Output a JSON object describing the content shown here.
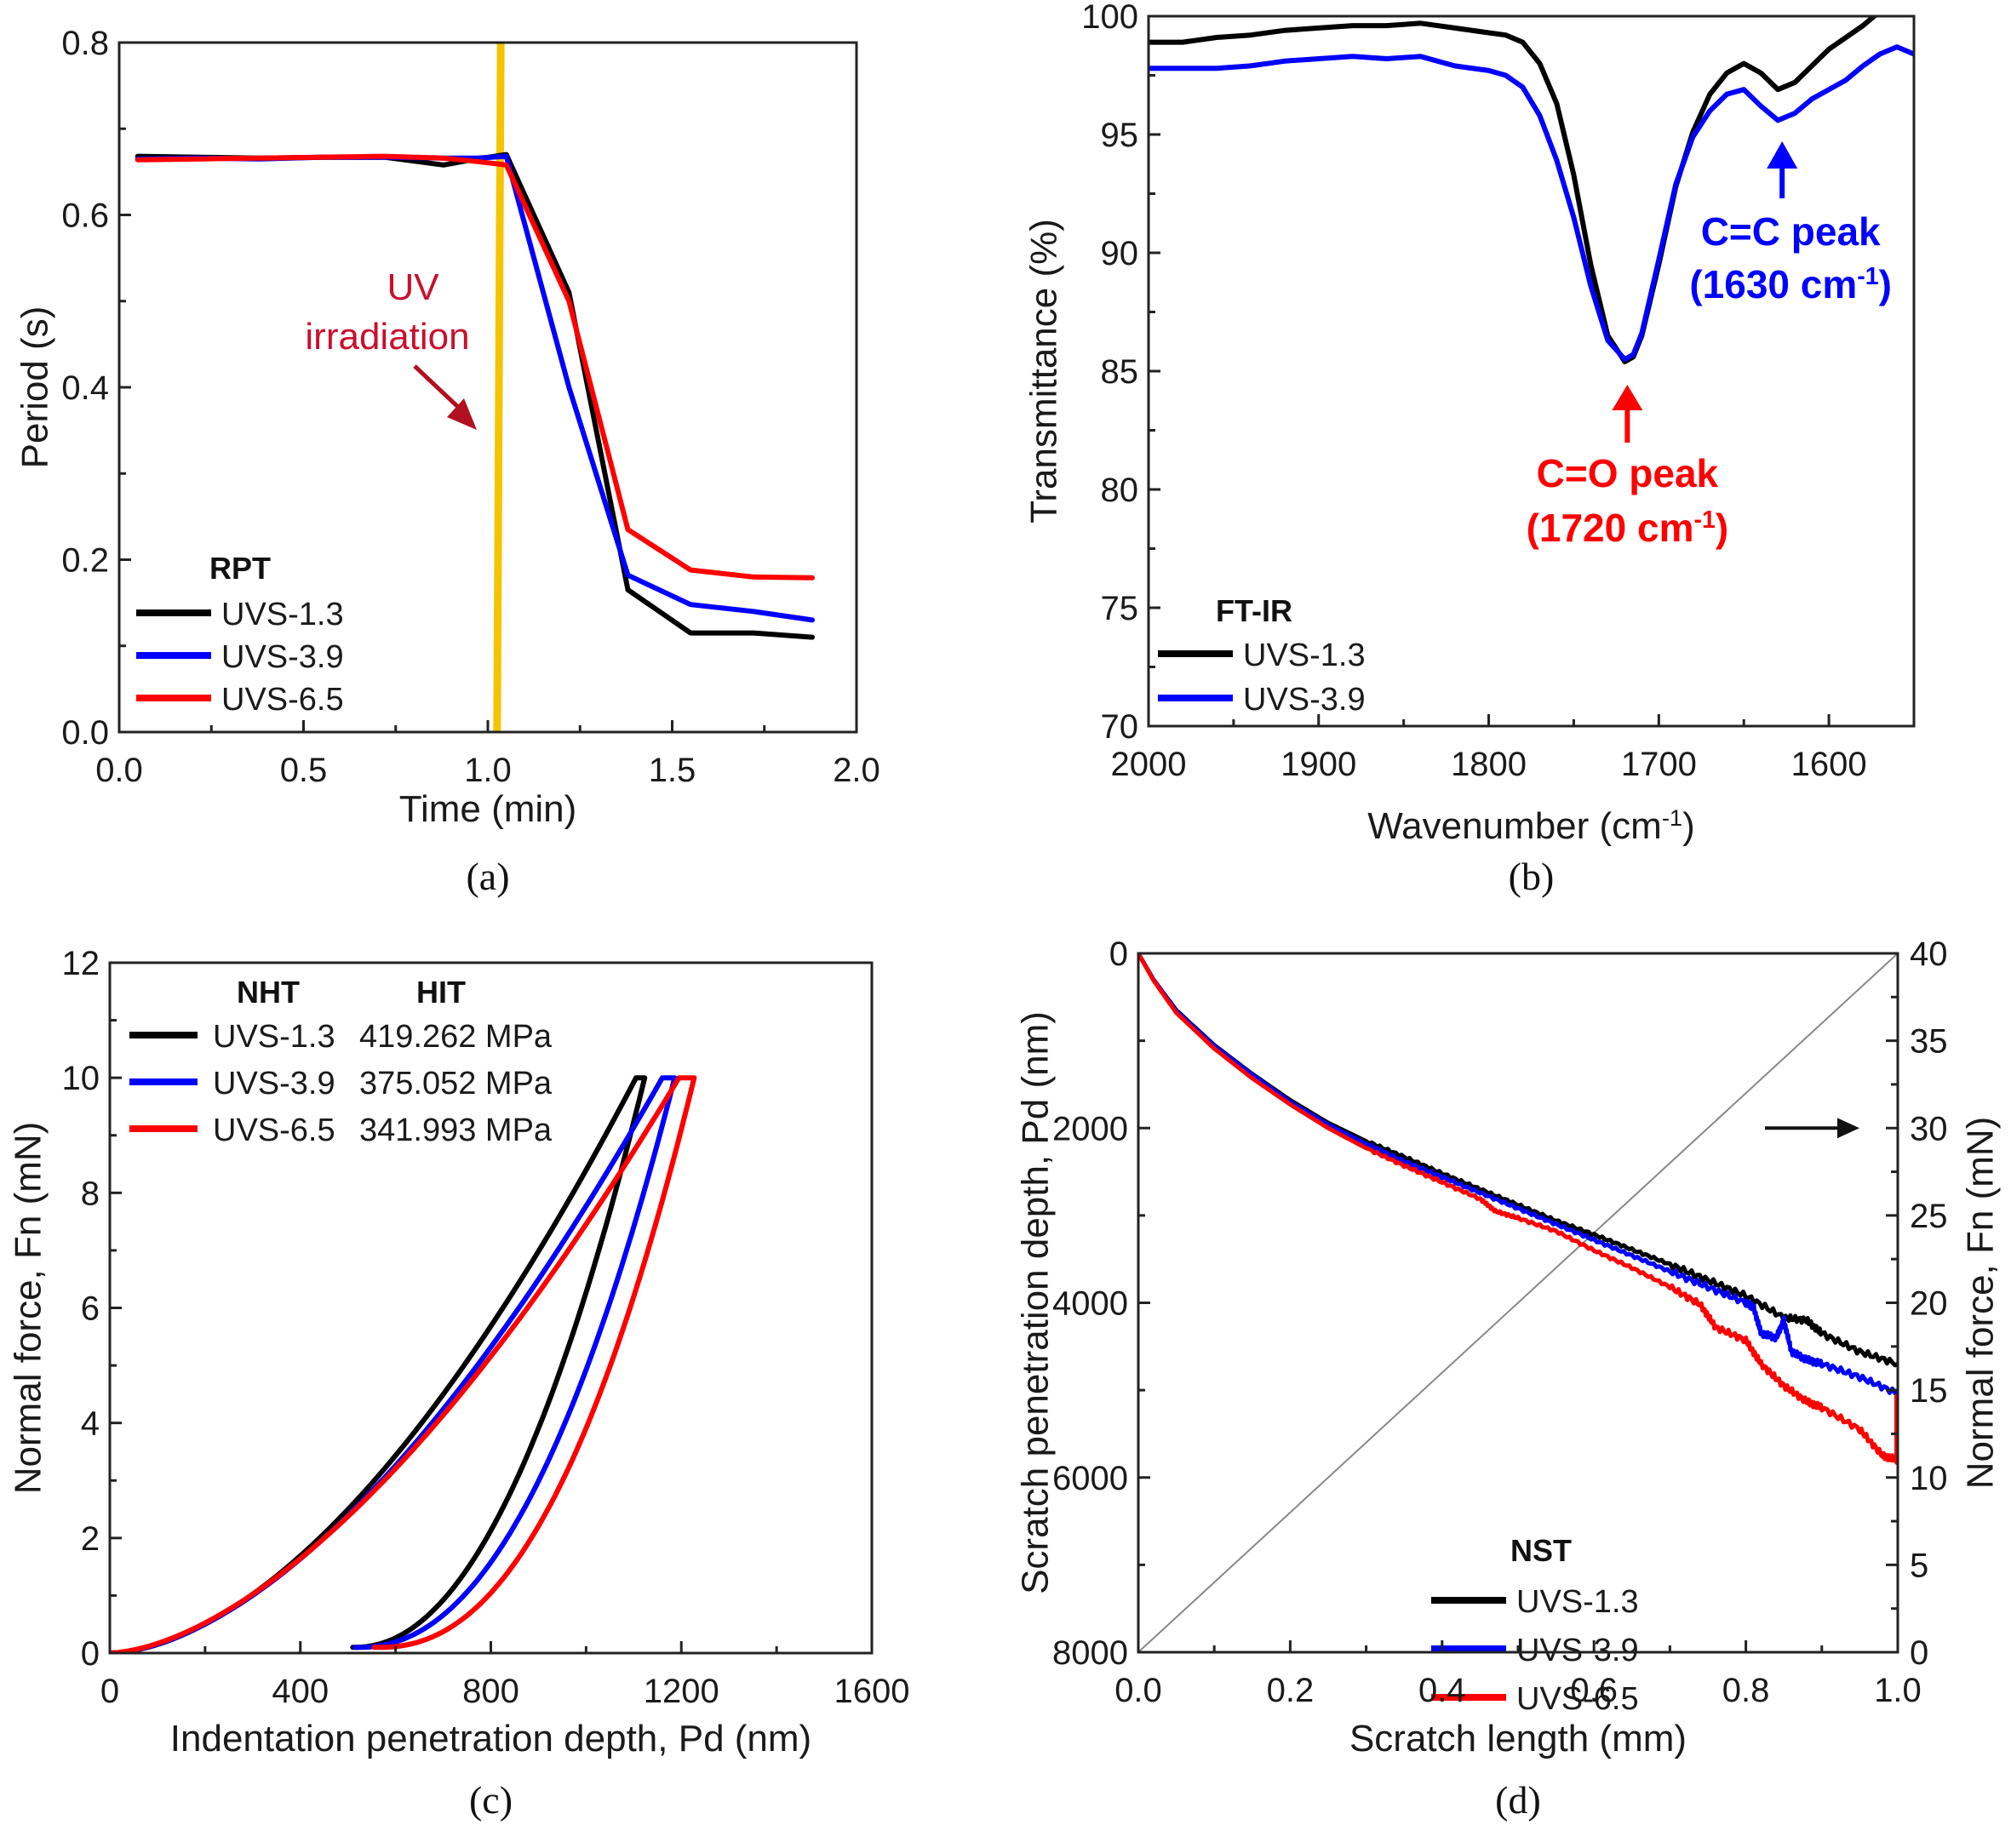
{
  "colors": {
    "UVS-1.3": "#000000",
    "UVS-3.9": "#0000ff",
    "UVS-6.5": "#ff0000",
    "uv_line": "#f5c400",
    "uv_text": "#c8102e",
    "co_annotation": "#ff0000",
    "cc_annotation": "#0000ff"
  },
  "chart_data": [
    {
      "id": "a",
      "type": "line",
      "caption": "(a)",
      "title": "",
      "xlabel": "Time (min)",
      "ylabel": "Period (s)",
      "xlim": [
        0,
        2.0
      ],
      "ylim": [
        0,
        0.8
      ],
      "xticks": [
        0.0,
        0.5,
        1.0,
        1.5,
        2.0
      ],
      "xtick_labels": [
        "0.0",
        "0.5",
        "1.0",
        "1.5",
        "2.0"
      ],
      "yticks": [
        0.0,
        0.2,
        0.4,
        0.6,
        0.8
      ],
      "ytick_labels": [
        "0.0",
        "0.2",
        "0.4",
        "0.6",
        "0.8"
      ],
      "grid": false,
      "legend": {
        "title": "RPT",
        "placement": "bottom-left",
        "entries": [
          "UVS-1.3",
          "UVS-3.9",
          "UVS-6.5"
        ]
      },
      "annotations": [
        {
          "text_lines": [
            "UV",
            "irradiation"
          ],
          "kind": "arrow-label",
          "x": 0.95,
          "y": 0.35
        },
        {
          "kind": "vertical-line",
          "label": "UV irradiation start",
          "x": 1.03
        }
      ],
      "series": [
        {
          "name": "UVS-1.3",
          "x": [
            0.05,
            0.22,
            0.38,
            0.55,
            0.72,
            0.88,
            0.97,
            1.05,
            1.22,
            1.38,
            1.55,
            1.72,
            1.88
          ],
          "y": [
            0.668,
            0.667,
            0.666,
            0.667,
            0.667,
            0.658,
            0.665,
            0.67,
            0.51,
            0.165,
            0.115,
            0.115,
            0.11
          ]
        },
        {
          "name": "UVS-3.9",
          "x": [
            0.05,
            0.22,
            0.38,
            0.55,
            0.72,
            0.88,
            0.97,
            1.05,
            1.22,
            1.38,
            1.55,
            1.72,
            1.88
          ],
          "y": [
            0.665,
            0.666,
            0.665,
            0.667,
            0.667,
            0.666,
            0.666,
            0.668,
            0.4,
            0.182,
            0.148,
            0.14,
            0.13
          ]
        },
        {
          "name": "UVS-6.5",
          "x": [
            0.05,
            0.22,
            0.38,
            0.55,
            0.72,
            0.88,
            0.97,
            1.05,
            1.22,
            1.38,
            1.55,
            1.72,
            1.88
          ],
          "y": [
            0.664,
            0.665,
            0.666,
            0.667,
            0.668,
            0.666,
            0.662,
            0.658,
            0.5,
            0.235,
            0.188,
            0.18,
            0.179
          ]
        }
      ]
    },
    {
      "id": "b",
      "type": "line",
      "caption": "(b)",
      "title": "",
      "xlabel": "Wavenumber (cm",
      "xlabel_sup": "-1",
      "xlabel_end": ")",
      "ylabel": "Transmittance (%)",
      "xlim": [
        2000,
        1550
      ],
      "ylim": [
        70,
        100
      ],
      "xticks": [
        2000,
        1900,
        1800,
        1700,
        1600
      ],
      "xtick_labels": [
        "2000",
        "1900",
        "1800",
        "1700",
        "1600"
      ],
      "yticks": [
        70,
        75,
        80,
        85,
        90,
        95,
        100
      ],
      "ytick_labels": [
        "70",
        "75",
        "80",
        "85",
        "90",
        "95",
        "100"
      ],
      "grid": false,
      "legend": {
        "title": "FT-IR",
        "placement": "bottom-left",
        "entries": [
          "UVS-1.3",
          "UVS-3.9"
        ]
      },
      "annotations": [
        {
          "text_lines": [
            "C=O peak",
            "(1720 cm",
            ")"
          ],
          "sup": "-1",
          "x": 1720,
          "y": 83.5,
          "color_key": "co_annotation"
        },
        {
          "text_lines": [
            "C=C peak",
            "(1630 cm",
            ")"
          ],
          "sup": "-1",
          "x": 1630,
          "y": 94.5,
          "color_key": "cc_annotation"
        }
      ],
      "series": [
        {
          "name": "UVS-1.3",
          "x": [
            2000,
            1980,
            1960,
            1940,
            1920,
            1900,
            1880,
            1860,
            1840,
            1820,
            1800,
            1790,
            1780,
            1770,
            1760,
            1750,
            1740,
            1730,
            1720,
            1715,
            1710,
            1700,
            1690,
            1680,
            1670,
            1660,
            1650,
            1640,
            1630,
            1620,
            1610,
            1600,
            1590,
            1580,
            1570,
            1560
          ],
          "y": [
            98.9,
            98.9,
            99.1,
            99.2,
            99.4,
            99.5,
            99.6,
            99.6,
            99.7,
            99.5,
            99.3,
            99.2,
            98.9,
            98.0,
            96.3,
            93.3,
            89.5,
            86.5,
            85.4,
            85.6,
            86.5,
            89.5,
            92.8,
            95.1,
            96.7,
            97.6,
            98.0,
            97.6,
            96.9,
            97.2,
            97.9,
            98.6,
            99.1,
            99.6,
            100.2,
            100.8
          ]
        },
        {
          "name": "UVS-3.9",
          "x": [
            2000,
            1980,
            1960,
            1940,
            1920,
            1900,
            1880,
            1860,
            1840,
            1820,
            1800,
            1790,
            1780,
            1770,
            1760,
            1750,
            1740,
            1730,
            1720,
            1715,
            1710,
            1700,
            1690,
            1680,
            1670,
            1660,
            1650,
            1640,
            1630,
            1620,
            1610,
            1600,
            1590,
            1580,
            1570,
            1560,
            1550
          ],
          "y": [
            97.8,
            97.8,
            97.8,
            97.9,
            98.1,
            98.2,
            98.3,
            98.2,
            98.3,
            97.9,
            97.7,
            97.5,
            97.0,
            95.8,
            93.9,
            91.5,
            88.6,
            86.3,
            85.5,
            85.7,
            86.6,
            89.7,
            92.9,
            94.9,
            96.0,
            96.7,
            96.9,
            96.2,
            95.6,
            95.9,
            96.5,
            96.9,
            97.3,
            97.9,
            98.4,
            98.7,
            98.4
          ]
        }
      ]
    },
    {
      "id": "c",
      "type": "line",
      "caption": "(c)",
      "title": "",
      "xlabel": "Indentation penetration depth, Pd (nm)",
      "ylabel": "Normal force, Fn (mN)",
      "xlim": [
        0,
        1600
      ],
      "ylim": [
        0,
        12
      ],
      "xticks": [
        0,
        400,
        800,
        1200,
        1600
      ],
      "xtick_labels": [
        "0",
        "400",
        "800",
        "1200",
        "1600"
      ],
      "yticks": [
        0,
        2,
        4,
        6,
        8,
        10,
        12
      ],
      "ytick_labels": [
        "0",
        "2",
        "4",
        "6",
        "8",
        "10",
        "12"
      ],
      "grid": false,
      "legend": {
        "placement": "top-left",
        "column_titles": [
          "NHT",
          "HIT"
        ],
        "entries": [
          "UVS-1.3",
          "UVS-3.9",
          "UVS-6.5"
        ],
        "values": [
          "419.262 MPa",
          "375.052 MPa",
          "341.993 MPa"
        ]
      },
      "series": [
        {
          "name": "UVS-1.3",
          "loading": {
            "max_depth": 1105,
            "hold_depth": 1123,
            "max_force": 10,
            "exponent": 1.75
          },
          "unloading": {
            "residual_depth": 510,
            "exponent": 2.1
          }
        },
        {
          "name": "UVS-3.9",
          "loading": {
            "max_depth": 1160,
            "hold_depth": 1186,
            "max_force": 10,
            "exponent": 1.7
          },
          "unloading": {
            "residual_depth": 515,
            "exponent": 2.2
          }
        },
        {
          "name": "UVS-6.5",
          "loading": {
            "max_depth": 1195,
            "hold_depth": 1227,
            "max_force": 10,
            "exponent": 1.65
          },
          "unloading": {
            "residual_depth": 555,
            "exponent": 2.3
          }
        }
      ]
    },
    {
      "id": "d",
      "type": "line",
      "caption": "(d)",
      "title": "",
      "xlabel": "Scratch length (mm)",
      "ylabel": "Scratch penetration depth, Pd (nm)",
      "ylabel_right": "Normal force, Fn (mN)",
      "xlim": [
        0,
        1.0
      ],
      "ylim": [
        8000,
        0
      ],
      "ylim_right": [
        0,
        40
      ],
      "xticks": [
        0.0,
        0.2,
        0.4,
        0.6,
        0.8,
        1.0
      ],
      "xtick_labels": [
        "0.0",
        "0.2",
        "0.4",
        "0.6",
        "0.8",
        "1.0"
      ],
      "yticks": [
        0,
        2000,
        4000,
        6000,
        8000
      ],
      "ytick_labels": [
        "0",
        "2000",
        "4000",
        "6000",
        "8000"
      ],
      "yticks_right": [
        0,
        5,
        10,
        15,
        20,
        25,
        30,
        35,
        40
      ],
      "ytick_labels_right": [
        "0",
        "5",
        "10",
        "15",
        "20",
        "25",
        "30",
        "35",
        "40"
      ],
      "grid": false,
      "legend": {
        "title": "NST",
        "placement": "bottom-center",
        "entries": [
          "UVS-1.3",
          "UVS-3.9",
          "UVS-6.5"
        ]
      },
      "annotations": [
        {
          "kind": "arrow",
          "direction": "right",
          "meaning": "normal force line uses right axis",
          "y_right": 30
        }
      ],
      "force_line": {
        "name": "Normal force",
        "x": [
          0,
          1.0
        ],
        "y_right": [
          0,
          40
        ],
        "color": "#888888"
      },
      "series": [
        {
          "name": "UVS-1.3",
          "x": [
            0,
            0.02,
            0.05,
            0.1,
            0.15,
            0.2,
            0.25,
            0.3,
            0.35,
            0.4,
            0.45,
            0.5,
            0.55,
            0.6,
            0.65,
            0.7,
            0.75,
            0.8,
            0.85,
            0.88,
            0.9,
            0.95,
            1.0
          ],
          "y": [
            0,
            300,
            650,
            1050,
            1380,
            1680,
            1940,
            2150,
            2330,
            2520,
            2700,
            2880,
            3060,
            3220,
            3390,
            3560,
            3740,
            3920,
            4170,
            4200,
            4350,
            4560,
            4700
          ]
        },
        {
          "name": "UVS-3.9",
          "x": [
            0,
            0.02,
            0.05,
            0.1,
            0.15,
            0.2,
            0.25,
            0.3,
            0.35,
            0.4,
            0.45,
            0.5,
            0.55,
            0.6,
            0.65,
            0.7,
            0.75,
            0.8,
            0.81,
            0.82,
            0.84,
            0.85,
            0.86,
            0.88,
            0.9,
            0.95,
            1.0
          ],
          "y": [
            0,
            300,
            660,
            1060,
            1390,
            1700,
            1960,
            2180,
            2380,
            2560,
            2740,
            2920,
            3100,
            3280,
            3460,
            3640,
            3820,
            4000,
            4050,
            4350,
            4400,
            4200,
            4560,
            4650,
            4700,
            4850,
            5040
          ]
        },
        {
          "name": "UVS-6.5",
          "x": [
            0,
            0.02,
            0.05,
            0.1,
            0.15,
            0.2,
            0.25,
            0.3,
            0.35,
            0.4,
            0.45,
            0.47,
            0.5,
            0.55,
            0.6,
            0.65,
            0.7,
            0.74,
            0.76,
            0.8,
            0.82,
            0.85,
            0.88,
            0.9,
            0.95,
            0.98,
            1.0
          ],
          "y": [
            0,
            310,
            680,
            1090,
            1430,
            1730,
            2000,
            2230,
            2430,
            2620,
            2810,
            2950,
            3030,
            3180,
            3400,
            3600,
            3820,
            4020,
            4280,
            4430,
            4700,
            4950,
            5130,
            5200,
            5450,
            5750,
            5800
          ]
        }
      ]
    }
  ]
}
